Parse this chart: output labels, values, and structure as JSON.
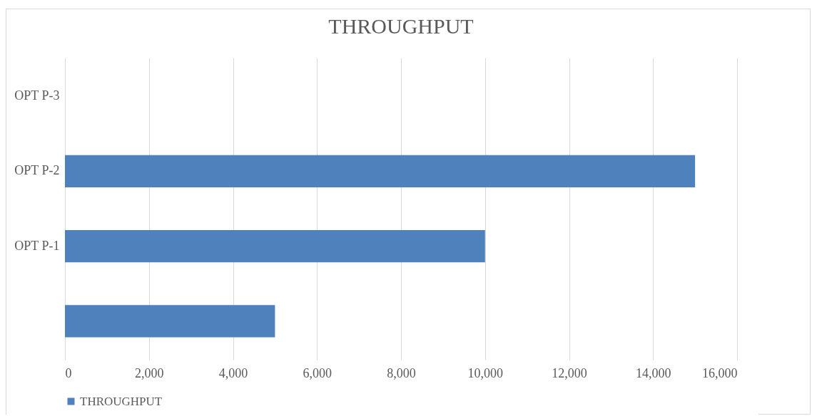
{
  "chart_data": {
    "type": "bar",
    "orientation": "horizontal",
    "title": "THROUGHPUT",
    "categories": [
      "OPT P-3",
      "OPT P-2",
      "OPT P-1",
      null
    ],
    "series": [
      {
        "name": "THROUGHPUT",
        "color": "#4f81bd",
        "values": [
          0,
          15000,
          10000,
          5000
        ]
      }
    ],
    "xlim": [
      0,
      16000
    ],
    "xticks": [
      0,
      {
        "value": 2000,
        "label": "2,000"
      },
      {
        "value": 4000,
        "label": "4,000"
      },
      {
        "value": 6000,
        "label": "6,000"
      },
      {
        "value": 8000,
        "label": "8,000"
      },
      {
        "value": 10000,
        "label": "10,000"
      },
      {
        "value": 12000,
        "label": "12,000"
      },
      {
        "value": 14000,
        "label": "14,000"
      },
      {
        "value": 16000,
        "label": "16,000"
      }
    ],
    "grid": "x",
    "legend": "bottom"
  }
}
